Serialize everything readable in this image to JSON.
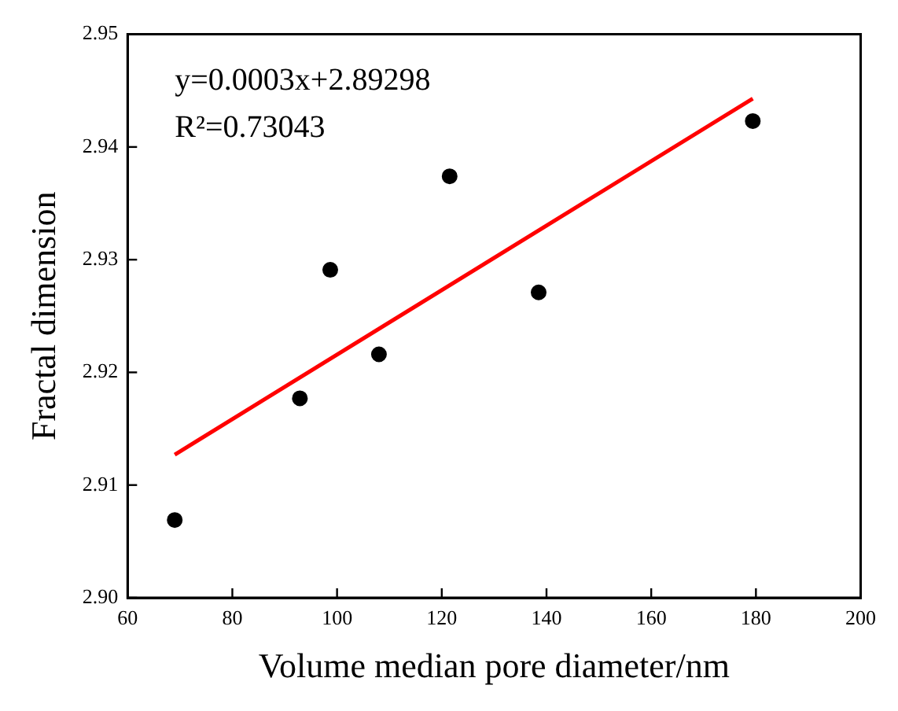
{
  "chart_data": {
    "type": "scatter",
    "xlabel": "Volume median pore diameter/nm",
    "ylabel": "Fractal dimension",
    "series": [
      {
        "color": "#000000",
        "marker": "circle",
        "x": [
          69.0,
          92.9,
          98.7,
          108.0,
          121.5,
          138.5,
          179.4
        ],
        "values": [
          2.9069,
          2.9177,
          2.9291,
          2.9216,
          2.9374,
          2.9271,
          2.9423
        ]
      },
      {
        "type": "line",
        "color": "#ff0000",
        "marker": "none",
        "x": [
          69.0,
          179.4
        ],
        "values": [
          2.9127,
          2.9443
        ]
      }
    ],
    "xlim": [
      60,
      200
    ],
    "xticks": [
      60,
      80,
      100,
      120,
      140,
      160,
      180,
      200
    ],
    "ylim": [
      2.9,
      2.95
    ],
    "yticks": [
      {
        "value": 2.9,
        "label": "2.90"
      },
      {
        "value": 2.91,
        "label": "2.91"
      },
      {
        "value": 2.92,
        "label": "2.92"
      },
      {
        "value": 2.93,
        "label": "2.93"
      },
      {
        "value": 2.94,
        "label": "2.94"
      },
      {
        "value": 2.95,
        "label": "2.95"
      }
    ],
    "annotations": [
      "y=0.0003x+2.89298",
      "R²=0.73043"
    ],
    "grid": false,
    "legend": false
  }
}
